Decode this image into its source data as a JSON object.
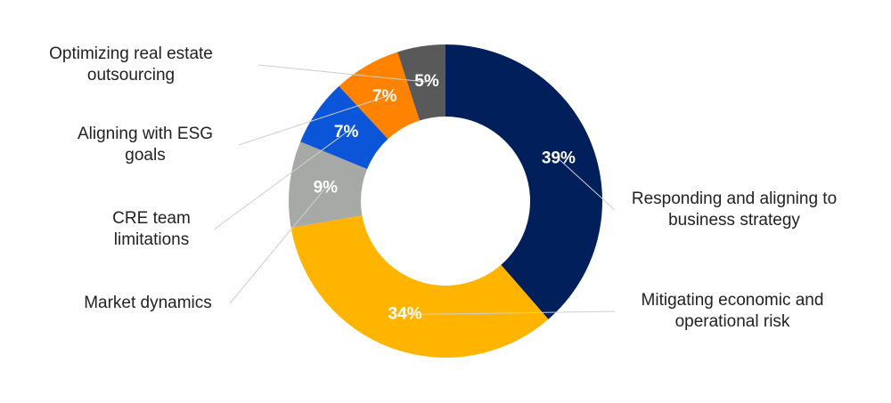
{
  "chart_data": {
    "type": "pie",
    "categories": [
      "Responding and aligning to business strategy",
      "Mitigating economic and operational risk",
      "Market dynamics",
      "CRE team limitations",
      "Aligning with ESG goals",
      "Optimizing real estate outsourcing"
    ],
    "values": [
      39,
      34,
      9,
      7,
      7,
      5
    ],
    "value_labels": [
      "39%",
      "34%",
      "9%",
      "7%",
      "7%",
      "5%"
    ],
    "colors": [
      "#001f5b",
      "#ffb500",
      "#a7a9a7",
      "#0a55d8",
      "#ff8200",
      "#595959"
    ]
  }
}
